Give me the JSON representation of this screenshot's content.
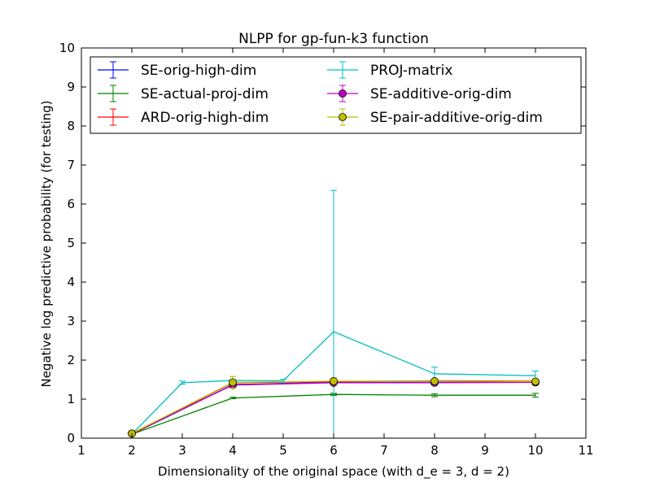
{
  "chart_data": {
    "type": "line",
    "title": "NLPP for gp-fun-k3 function",
    "xlabel": "Dimensionality of the original space (with d_e = 3, d = 2)",
    "ylabel": "Negative log predictive probability (for testing)",
    "xlim": [
      1,
      11
    ],
    "ylim": [
      0,
      10
    ],
    "xticks": [
      "1",
      "2",
      "3",
      "4",
      "5",
      "6",
      "7",
      "8",
      "9",
      "10",
      "11"
    ],
    "yticks": [
      "0",
      "1",
      "2",
      "3",
      "4",
      "5",
      "6",
      "7",
      "8",
      "9",
      "10"
    ],
    "grid": false,
    "legend_position": "top",
    "series": [
      {
        "name": "SE-orig-high-dim",
        "color": "#0000ff",
        "marker": "none",
        "x": [
          2,
          4,
          6,
          8,
          10
        ],
        "y": [
          0.1,
          1.37,
          1.43,
          1.43,
          1.44
        ],
        "err": [
          0.02,
          0.03,
          0.03,
          0.03,
          0.03
        ]
      },
      {
        "name": "SE-actual-proj-dim",
        "color": "#008000",
        "marker": "none",
        "x": [
          2,
          4,
          6,
          8,
          10
        ],
        "y": [
          0.1,
          1.03,
          1.12,
          1.1,
          1.1
        ],
        "err": [
          0.02,
          0.02,
          0.03,
          0.04,
          0.05
        ]
      },
      {
        "name": "ARD-orig-high-dim",
        "color": "#ff0000",
        "marker": "none",
        "x": [
          2,
          4,
          6,
          8,
          10
        ],
        "y": [
          0.1,
          1.42,
          1.45,
          1.47,
          1.46
        ],
        "err": [
          0.02,
          0.03,
          0.03,
          0.03,
          0.03
        ]
      },
      {
        "name": "PROJ-matrix",
        "color": "#00bfbf",
        "marker": "none",
        "x": [
          2,
          3,
          4,
          5,
          6,
          8,
          10
        ],
        "y": [
          0.1,
          1.42,
          1.48,
          1.47,
          2.73,
          1.65,
          1.6
        ],
        "err": [
          0.02,
          0.04,
          0.1,
          0.04,
          3.62,
          0.17,
          0.12
        ]
      },
      {
        "name": "SE-additive-orig-dim",
        "color": "#bf00bf",
        "marker": "circle",
        "x": [
          2,
          4,
          6,
          8,
          10
        ],
        "y": [
          0.12,
          1.36,
          1.42,
          1.42,
          1.43
        ],
        "err": [
          0.02,
          0.03,
          0.03,
          0.03,
          0.03
        ]
      },
      {
        "name": "SE-pair-additive-orig-dim",
        "color": "#bfbf00",
        "marker": "circle",
        "x": [
          2,
          4,
          6,
          8,
          10
        ],
        "y": [
          0.12,
          1.43,
          1.46,
          1.46,
          1.45
        ],
        "err": [
          0.02,
          0.15,
          0.08,
          0.05,
          0.03
        ]
      }
    ]
  }
}
